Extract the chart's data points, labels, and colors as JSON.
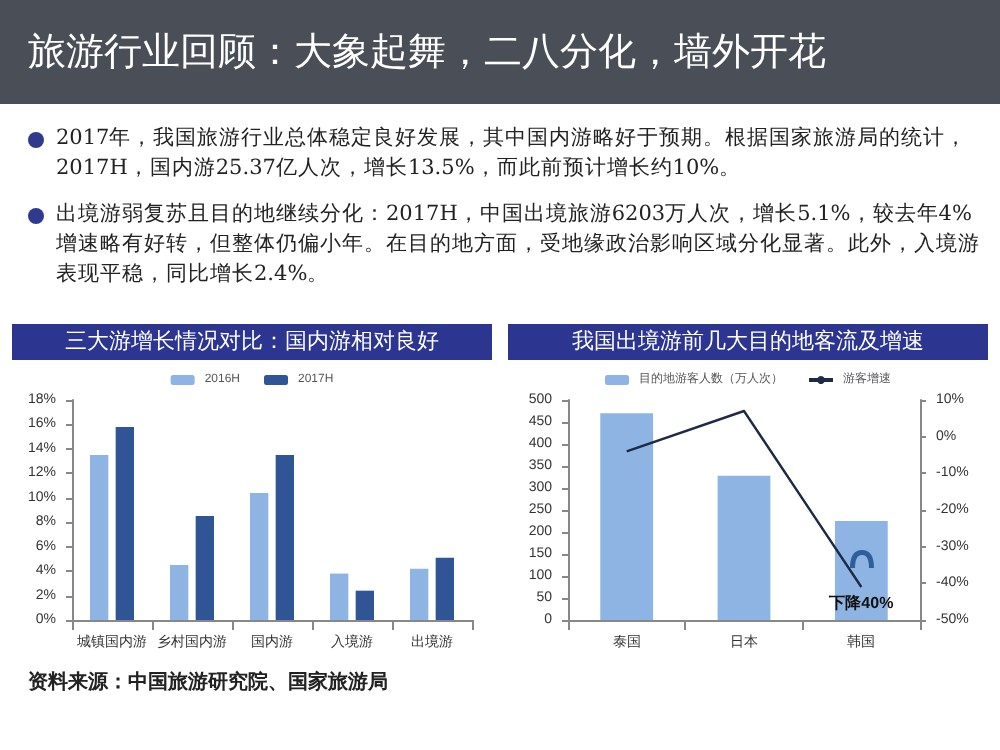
{
  "chart_data": [
    {
      "type": "other",
      "title": "旅游行业回顾：大象起舞，二八分化，墙外开花",
      "annotations": [
        "2017年，我国旅游行业总体稳定良好发展，其中国内游略好于预期。根据国家旅游局的统计，2017H，国内游25.37亿人次，增长13.5%，而此前预计增长约10%。",
        "出境游弱复苏且目的地继续分化：2017H，中国出境旅游6203万人次，增长5.1%，较去年4%增速略有好转，但整体仍偏小年。在目的地方面，受地缘政治影响区域分化显著。此外，入境游表现平稳，同比增长2.4%。",
        "资料来源：中国旅游研究院、国家旅游局"
      ]
    },
    {
      "type": "bar",
      "title": "三大游增长情况对比：国内游相对良好",
      "categories": [
        "城镇国内游",
        "乡村国内游",
        "国内游",
        "入境游",
        "出境游"
      ],
      "legend": "top",
      "grid": false,
      "ylim": [
        0,
        18
      ],
      "yticks": [
        {
          "value": 0,
          "label": "0%"
        },
        {
          "value": 2,
          "label": "2%"
        },
        {
          "value": 4,
          "label": "4%"
        },
        {
          "value": 6,
          "label": "6%"
        },
        {
          "value": 8,
          "label": "8%"
        },
        {
          "value": 10,
          "label": "10%"
        },
        {
          "value": 12,
          "label": "12%"
        },
        {
          "value": 14,
          "label": "14%"
        },
        {
          "value": 16,
          "label": "16%"
        },
        {
          "value": 18,
          "label": "18%"
        }
      ],
      "series": [
        {
          "name": "2016H",
          "color": "#8eb4e3",
          "values": [
            13.5,
            4.5,
            10.4,
            3.8,
            4.2
          ]
        },
        {
          "name": "2017H",
          "color": "#2f5597",
          "values": [
            15.8,
            8.5,
            13.5,
            2.4,
            5.1
          ]
        }
      ]
    },
    {
      "type": "bar",
      "title": "我国出境游前几大目的地客流及增速",
      "categories": [
        "泰国",
        "日本",
        "韩国"
      ],
      "legend": "top",
      "grid": false,
      "line_style": "solid",
      "marker": "none",
      "ylim": [
        0,
        500
      ],
      "yticks": [
        0,
        50,
        100,
        150,
        200,
        250,
        300,
        350,
        400,
        450,
        500
      ],
      "y2lim": [
        -50,
        10
      ],
      "y2ticks": [
        {
          "value": -50,
          "label": "-50%"
        },
        {
          "value": -40,
          "label": "-40%"
        },
        {
          "value": -30,
          "label": "-30%"
        },
        {
          "value": -20,
          "label": "-20%"
        },
        {
          "value": -10,
          "label": "-10%"
        },
        {
          "value": 0,
          "label": "0%"
        },
        {
          "value": 10,
          "label": "10%"
        }
      ],
      "annotations": [
        "下降40%"
      ],
      "series": [
        {
          "name": "目的地游客人数（万人次）",
          "color": "#8eb4e3",
          "values": [
            470,
            328,
            225
          ]
        },
        {
          "name": "游客增速",
          "type": "line",
          "axis": "y2",
          "color": "#1f2a44",
          "values": [
            -4,
            7,
            -41
          ]
        }
      ]
    }
  ]
}
